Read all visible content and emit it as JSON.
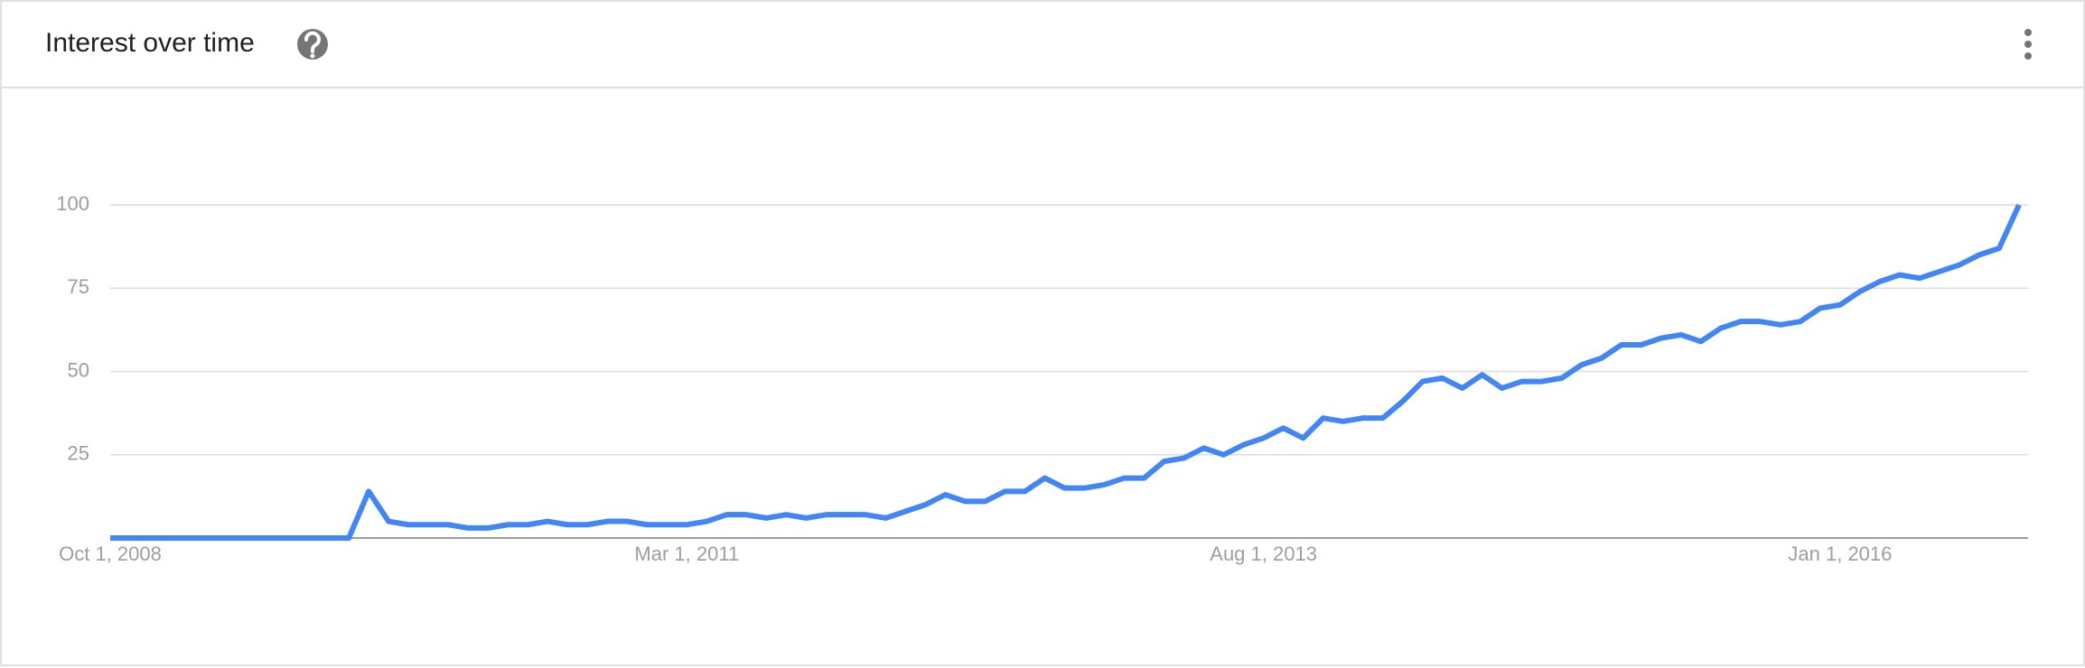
{
  "chart_data": {
    "type": "line",
    "title": "Interest over time",
    "x": [
      "2008-10-01",
      "2008-11-01",
      "2008-12-01",
      "2009-01-01",
      "2009-02-01",
      "2009-03-01",
      "2009-04-01",
      "2009-05-01",
      "2009-06-01",
      "2009-07-01",
      "2009-08-01",
      "2009-09-01",
      "2009-10-01",
      "2009-11-01",
      "2009-12-01",
      "2010-01-01",
      "2010-02-01",
      "2010-03-01",
      "2010-04-01",
      "2010-05-01",
      "2010-06-01",
      "2010-07-01",
      "2010-08-01",
      "2010-09-01",
      "2010-10-01",
      "2010-11-01",
      "2010-12-01",
      "2011-01-01",
      "2011-02-01",
      "2011-03-01",
      "2011-04-01",
      "2011-05-01",
      "2011-06-01",
      "2011-07-01",
      "2011-08-01",
      "2011-09-01",
      "2011-10-01",
      "2011-11-01",
      "2011-12-01",
      "2012-01-01",
      "2012-02-01",
      "2012-03-01",
      "2012-04-01",
      "2012-05-01",
      "2012-06-01",
      "2012-07-01",
      "2012-08-01",
      "2012-09-01",
      "2012-10-01",
      "2012-11-01",
      "2012-12-01",
      "2013-01-01",
      "2013-02-01",
      "2013-03-01",
      "2013-04-01",
      "2013-05-01",
      "2013-06-01",
      "2013-07-01",
      "2013-08-01",
      "2013-09-01",
      "2013-10-01",
      "2013-11-01",
      "2013-12-01",
      "2014-01-01",
      "2014-02-01",
      "2014-03-01",
      "2014-04-01",
      "2014-05-01",
      "2014-06-01",
      "2014-07-01",
      "2014-08-01",
      "2014-09-01",
      "2014-10-01",
      "2014-11-01",
      "2014-12-01",
      "2015-01-01",
      "2015-02-01",
      "2015-03-01",
      "2015-04-01",
      "2015-05-01",
      "2015-06-01",
      "2015-07-01",
      "2015-08-01",
      "2015-09-01",
      "2015-10-01",
      "2015-11-01",
      "2015-12-01",
      "2016-01-01",
      "2016-02-01",
      "2016-03-01",
      "2016-04-01",
      "2016-05-01",
      "2016-06-01",
      "2016-07-01",
      "2016-08-01",
      "2016-09-01",
      "2016-10-01"
    ],
    "series": [
      {
        "color": "#4285f4",
        "values": [
          0,
          0,
          0,
          0,
          0,
          0,
          0,
          0,
          0,
          0,
          0,
          0,
          0,
          14,
          5,
          4,
          4,
          4,
          3,
          3,
          4,
          4,
          5,
          4,
          4,
          5,
          5,
          4,
          4,
          4,
          5,
          7,
          7,
          6,
          7,
          6,
          7,
          7,
          7,
          6,
          8,
          10,
          13,
          11,
          11,
          14,
          14,
          18,
          15,
          15,
          16,
          18,
          18,
          23,
          24,
          27,
          25,
          28,
          30,
          33,
          30,
          36,
          35,
          36,
          36,
          41,
          47,
          48,
          45,
          49,
          45,
          47,
          47,
          48,
          52,
          54,
          58,
          58,
          60,
          61,
          59,
          63,
          65,
          65,
          64,
          65,
          69,
          70,
          74,
          77,
          79,
          78,
          80,
          82,
          85,
          87,
          100
        ]
      }
    ],
    "ylim": [
      0,
      100
    ],
    "yticks": [
      25,
      50,
      75,
      100
    ],
    "xticks": [
      {
        "value": "2008-10-01",
        "label": "Oct 1, 2008"
      },
      {
        "value": "2011-03-01",
        "label": "Mar 1, 2011"
      },
      {
        "value": "2013-08-01",
        "label": "Aug 1, 2013"
      },
      {
        "value": "2016-01-01",
        "label": "Jan 1, 2016"
      }
    ],
    "grid": true
  }
}
